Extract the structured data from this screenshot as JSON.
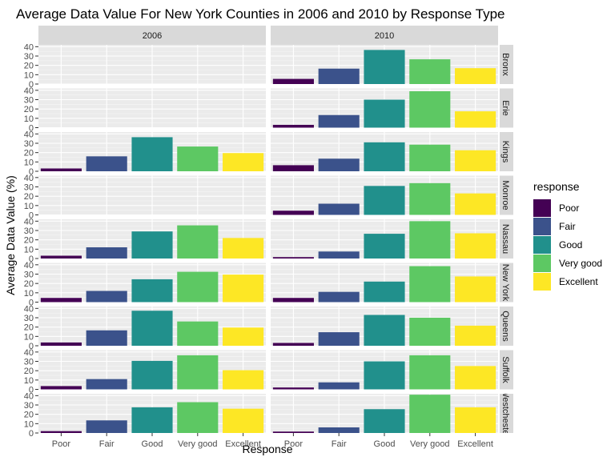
{
  "chart_data": {
    "type": "bar",
    "title": "Average Data Value For New York Counties in 2006 and 2010 by Response Type",
    "xlabel": "Response",
    "ylabel": "Average Data Value (%)",
    "ylim": [
      0,
      42
    ],
    "yticks": [
      0,
      10,
      20,
      30,
      40
    ],
    "grid": true,
    "facet_cols": [
      "2006",
      "2010"
    ],
    "facet_rows": [
      "Bronx",
      "Erie",
      "Kings",
      "Monroe",
      "Nassau",
      "New York",
      "Queens",
      "Suffolk",
      "Westchester"
    ],
    "categories": [
      "Poor",
      "Fair",
      "Good",
      "Very good",
      "Excellent"
    ],
    "colors": [
      "#440154",
      "#3b528b",
      "#21908c",
      "#5dc863",
      "#fde725"
    ],
    "legend": {
      "title": "response",
      "placement": "right"
    },
    "panels": {
      "2006": {
        "Bronx": null,
        "Erie": null,
        "Kings": [
          3,
          16,
          36.5,
          26.5,
          19.5
        ],
        "Monroe": null,
        "Nassau": [
          3,
          12,
          29,
          35.5,
          22
        ],
        "New York": [
          4.5,
          12,
          24.5,
          32.5,
          29.5
        ],
        "Queens": [
          3.5,
          16.5,
          37.5,
          26,
          19.5
        ],
        "Suffolk": [
          3.5,
          11,
          30.5,
          36.5,
          20.5
        ],
        "Westchester": [
          2,
          13.5,
          27.5,
          33,
          26
        ]
      },
      "2010": {
        "Bronx": [
          5.5,
          16.5,
          36.5,
          26.5,
          17
        ],
        "Erie": [
          3,
          13.5,
          30,
          39,
          17.5
        ],
        "Kings": [
          6.5,
          13.5,
          31,
          28.5,
          22.5
        ],
        "Monroe": [
          4.5,
          12,
          31,
          34,
          23
        ],
        "Nassau": [
          1.5,
          7.5,
          26.5,
          40,
          27
        ],
        "New York": [
          4.5,
          11,
          22,
          38.5,
          27.5
        ],
        "Queens": [
          3,
          14.5,
          33,
          30,
          21.5
        ],
        "Suffolk": [
          2,
          7.5,
          30,
          36.5,
          25
        ],
        "Westchester": [
          1.5,
          6,
          25.5,
          41,
          27.5
        ]
      }
    }
  }
}
